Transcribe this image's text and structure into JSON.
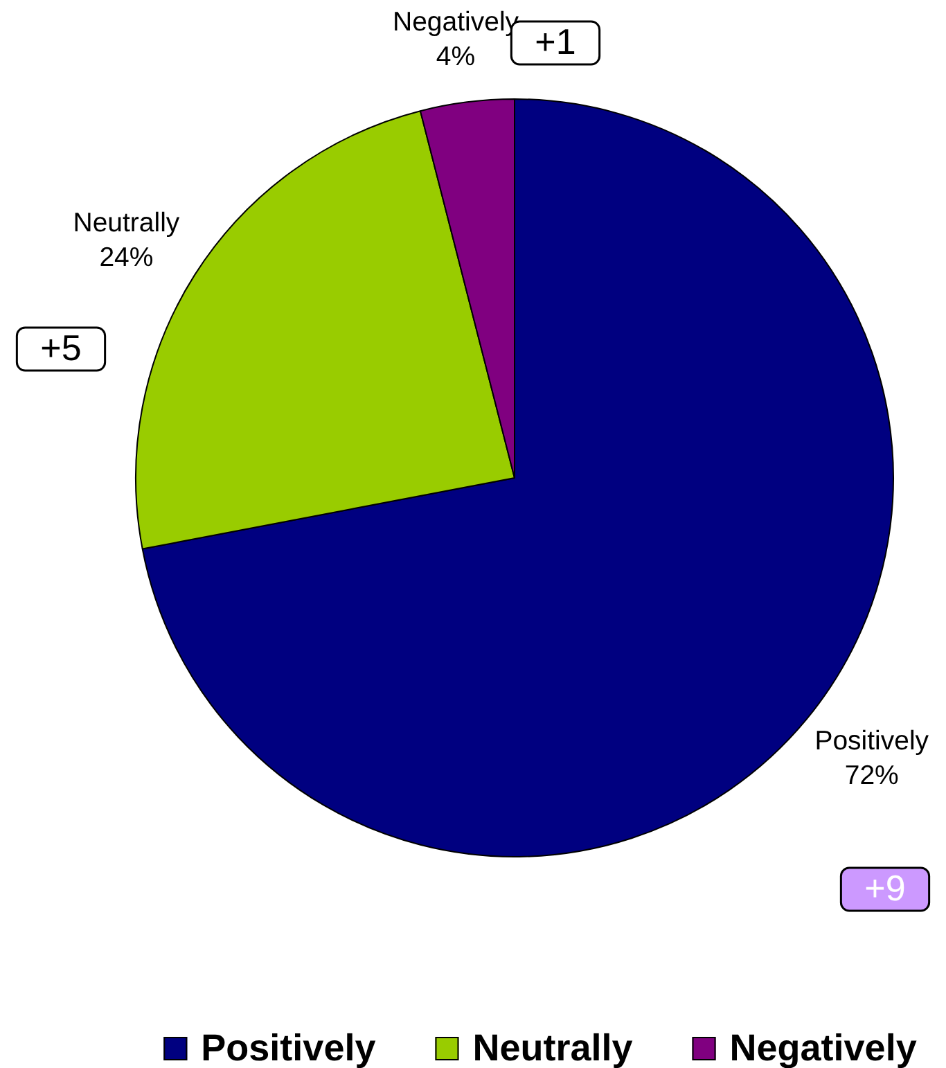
{
  "chart_data": {
    "type": "pie",
    "categories": [
      "Positively",
      "Neutrally",
      "Negatively"
    ],
    "values": [
      72,
      24,
      4
    ],
    "colors": [
      "#000080",
      "#99cc00",
      "#800080"
    ],
    "value_labels": [
      "72%",
      "24%",
      "4%"
    ],
    "legend": "bottom",
    "annotations": [
      "+1",
      "+5",
      "+9"
    ]
  }
}
